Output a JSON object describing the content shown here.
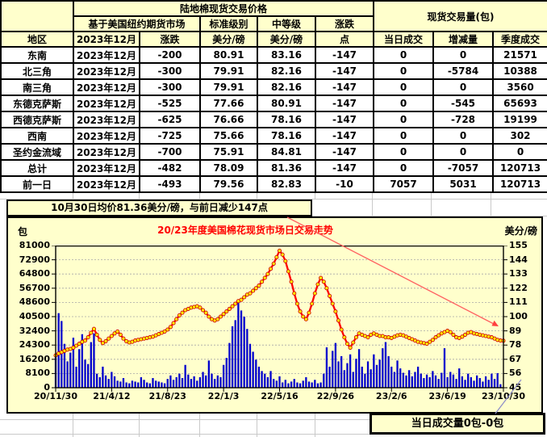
{
  "table": {
    "title": "陆地棉现货交易价格",
    "volume_group": "现货交易量(包)",
    "sub_futures": "基于美国纽约期货市场",
    "sub_standard": "标准级别",
    "sub_middling": "中等级",
    "sub_change": "涨跌",
    "col_region": "地区",
    "col_month": "2023年12月",
    "col_change": "涨跌",
    "col_unit_std": "美分/磅",
    "col_unit_mid": "美分/磅",
    "col_points": "点",
    "col_daily": "当日成交",
    "col_delta": "增减量",
    "col_quarter": "季度成交",
    "rows": [
      {
        "region": "东南",
        "month": "2023年12月",
        "change": "-200",
        "std": "80.91",
        "mid": "83.16",
        "pts": "-147",
        "daily": "0",
        "delta": "0",
        "delta_color": "red",
        "quarter": "21571"
      },
      {
        "region": "北三角",
        "month": "2023年12月",
        "change": "-300",
        "std": "79.91",
        "mid": "82.16",
        "pts": "-147",
        "daily": "0",
        "delta": "-5784",
        "delta_color": "blue",
        "quarter": "10388"
      },
      {
        "region": "南三角",
        "month": "2023年12月",
        "change": "-300",
        "std": "79.91",
        "mid": "82.16",
        "pts": "-147",
        "daily": "0",
        "delta": "0",
        "delta_color": "red",
        "quarter": "3560"
      },
      {
        "region": "东德克萨斯",
        "month": "2023年12月",
        "change": "-525",
        "std": "77.66",
        "mid": "80.91",
        "pts": "-147",
        "daily": "0",
        "delta": "-545",
        "delta_color": "blue",
        "quarter": "65693"
      },
      {
        "region": "西德克萨斯",
        "month": "2023年12月",
        "change": "-625",
        "std": "76.66",
        "mid": "78.16",
        "pts": "-147",
        "daily": "0",
        "delta": "-728",
        "delta_color": "blue",
        "quarter": "19199"
      },
      {
        "region": "西南",
        "month": "2023年12月",
        "change": "-725",
        "std": "75.66",
        "mid": "78.16",
        "pts": "-147",
        "daily": "0",
        "delta": "0",
        "delta_color": "red",
        "quarter": "302"
      },
      {
        "region": "圣约金流域",
        "month": "2023年12月",
        "change": "-700",
        "std": "75.91",
        "mid": "84.81",
        "pts": "-147",
        "daily": "0",
        "delta": "0",
        "delta_color": "red",
        "quarter": "0"
      },
      {
        "region": "总计",
        "month": "2023年12月",
        "change": "-482",
        "std": "78.09",
        "mid": "81.36",
        "pts": "-147",
        "daily": "0",
        "delta": "-7057",
        "delta_color": "blue",
        "quarter": "120713"
      },
      {
        "region": "前一日",
        "month": "2023年12月",
        "change": "-493",
        "std": "79.56",
        "mid": "82.83",
        "pts": "-10",
        "daily": "7057",
        "delta": "5031",
        "delta_color": "red",
        "quarter": "120713"
      }
    ]
  },
  "note": "10月30日均价81.36美分/磅，与前日减少147点",
  "footer_box": "当日成交量0包-0包",
  "chart_data": {
    "type": "bar+line combo",
    "title": "20/23年度美国棉花现货市场日交易走势",
    "title_color": "#FF0000",
    "grid": "horizontal dashed",
    "x_ticks": [
      "20/11/30",
      "21/4/12",
      "21/8/23",
      "22/1/3",
      "22/5/16",
      "22/9/26",
      "23/2/6",
      "23/6/19",
      "23/10/30"
    ],
    "left_axis": {
      "label": "包",
      "min": 0,
      "max": 81000,
      "step": 8100
    },
    "right_axis": {
      "label": "美分/磅",
      "min": 45,
      "max": 155,
      "step": 11
    },
    "series": [
      {
        "name": "volume_bales",
        "type": "bar",
        "axis": "left",
        "color": "#0000CD",
        "values": [
          18000,
          42500,
          38000,
          25000,
          15000,
          20000,
          28500,
          12000,
          22000,
          30500,
          16000,
          13500,
          26000,
          31000,
          8000,
          6000,
          12000,
          7000,
          5000,
          9000,
          6500,
          4000,
          3500,
          5500,
          3000,
          2500,
          4000,
          3500,
          3000,
          6000,
          4500,
          3000,
          2500,
          5500,
          4000,
          3500,
          3000,
          2500,
          5000,
          7000,
          4500,
          6000,
          8000,
          5500,
          13000,
          7500,
          5000,
          6500,
          4000,
          6000,
          9000,
          7000,
          15500,
          8000,
          5000,
          7000,
          6000,
          13000,
          17000,
          25500,
          35000,
          38500,
          48600,
          44000,
          40500,
          33500,
          25000,
          20500,
          16000,
          12000,
          9500,
          8000,
          6000,
          9500,
          5000,
          4000,
          6500,
          3000,
          4500,
          2500,
          3500,
          5000,
          3000,
          2500,
          4000,
          6000,
          3500,
          3000,
          4500,
          2500,
          3000,
          8000,
          23000,
          12000,
          21000,
          25500,
          15000,
          18000,
          10000,
          14000,
          19000,
          9000,
          16500,
          22000,
          12000,
          8000,
          15000,
          10500,
          19000,
          13000,
          16000,
          22500,
          26000,
          18000,
          12000,
          9000,
          15500,
          11000,
          8500,
          7000,
          10000,
          6500,
          9000,
          12000,
          8000,
          5500,
          7500,
          6000,
          9500,
          7000,
          5000,
          8500,
          22500,
          6000,
          9000,
          7500,
          5000,
          11000,
          6500,
          4500,
          8000,
          6000,
          4000,
          7000,
          5500,
          3500,
          6500,
          4500,
          8000,
          5000,
          8300,
          2000,
          0
        ]
      },
      {
        "name": "price_cents_per_lb",
        "type": "line",
        "axis": "right",
        "color": "#FF0000",
        "marker_color": "#FFFF00",
        "values": [
          70,
          71.5,
          72.5,
          73.5,
          74.5,
          75,
          76,
          77.5,
          79,
          80.5,
          81.5,
          84,
          87.5,
          90.5,
          86,
          82,
          79.5,
          81,
          83,
          85,
          87,
          88.5,
          86,
          83,
          81,
          80,
          80.5,
          81.5,
          82,
          82.5,
          83,
          83.5,
          84,
          84.5,
          85.5,
          86.5,
          87.5,
          88.5,
          90,
          92,
          95,
          98,
          101,
          103,
          105,
          106,
          107,
          107.5,
          108,
          107,
          105,
          103,
          100,
          98,
          97,
          98,
          100,
          102,
          104,
          106,
          108,
          110,
          112,
          113,
          115,
          117,
          118,
          120,
          122,
          124,
          127,
          130,
          133,
          137,
          141,
          146,
          151,
          148,
          143,
          135,
          127,
          118,
          110,
          104,
          100,
          98,
          103,
          110,
          118,
          125,
          130,
          127,
          122,
          116,
          110,
          104,
          97,
          90,
          84,
          79,
          76,
          80,
          84,
          87,
          86,
          85,
          84,
          86,
          87,
          86,
          85,
          85,
          84,
          84,
          83.5,
          84.5,
          85.5,
          86,
          85.5,
          84.5,
          83.5,
          82.5,
          81.5,
          80.5,
          80,
          79.5,
          79,
          80.5,
          82,
          84,
          85.5,
          87,
          88,
          89,
          88,
          86,
          84,
          83.5,
          84.5,
          86,
          87.5,
          88,
          87,
          86.5,
          86,
          85.5,
          85,
          84.5,
          84,
          83,
          82,
          81.5,
          81.4
        ]
      }
    ]
  }
}
